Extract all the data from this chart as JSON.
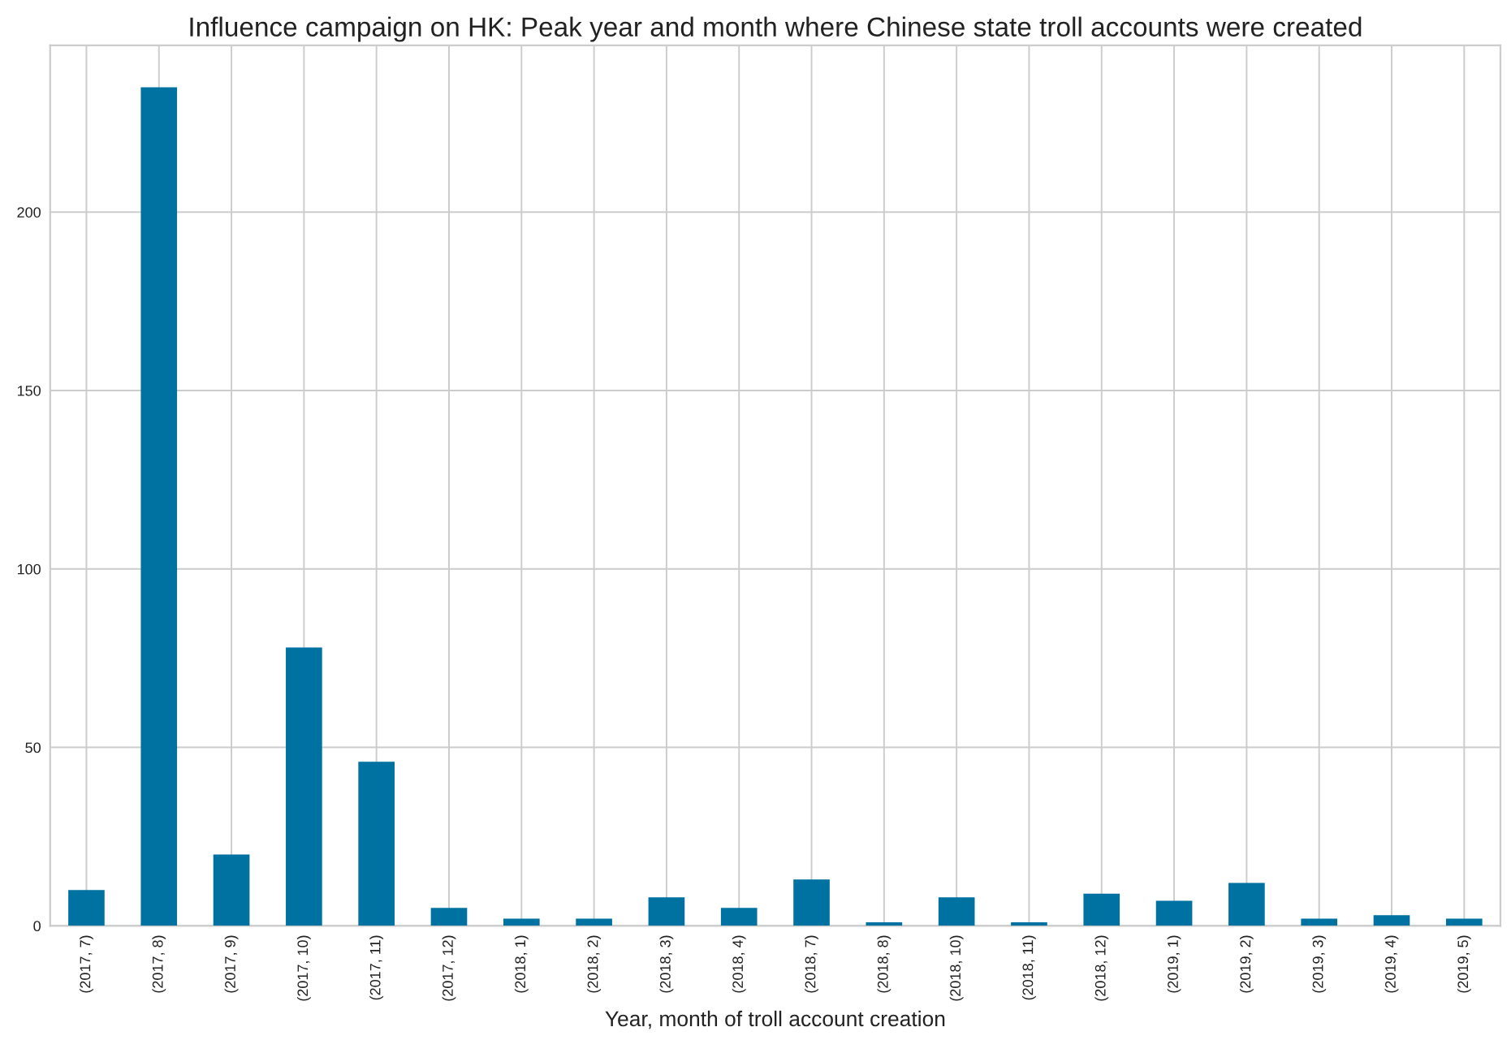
{
  "chart_data": {
    "type": "bar",
    "title": "Influence campaign on HK: Peak year and month where Chinese state troll accounts were created",
    "xlabel": "Year, month of troll account creation",
    "categories": [
      "(2017, 7)",
      "(2017, 8)",
      "(2017, 9)",
      "(2017, 10)",
      "(2017, 11)",
      "(2017, 12)",
      "(2018, 1)",
      "(2018, 2)",
      "(2018, 3)",
      "(2018, 4)",
      "(2018, 7)",
      "(2018, 8)",
      "(2018, 10)",
      "(2018, 11)",
      "(2018, 12)",
      "(2019, 1)",
      "(2019, 2)",
      "(2019, 3)",
      "(2019, 4)",
      "(2019, 5)"
    ],
    "values": [
      10,
      235,
      20,
      78,
      46,
      5,
      2,
      2,
      8,
      5,
      13,
      1,
      8,
      1,
      9,
      7,
      12,
      2,
      3,
      2
    ],
    "color": "#0072a2",
    "ylim": [
      0,
      246.75
    ],
    "yticks": [
      0,
      50,
      100,
      150,
      200
    ],
    "grid": true
  }
}
